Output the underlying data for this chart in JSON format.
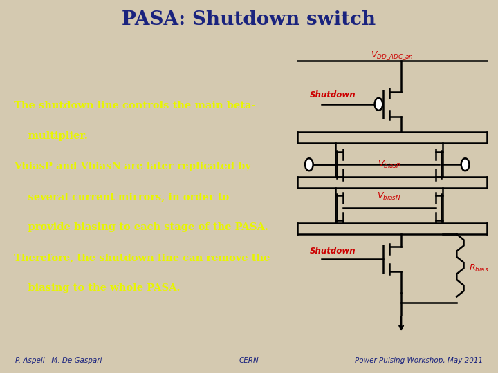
{
  "title": "PASA: Shutdown switch",
  "title_color": "#1a237e",
  "title_fontsize": 20,
  "header_bg": "#d4c9b0",
  "main_bg": "#1a3a9e",
  "footer_bg": "#d4c9b0",
  "footer_color": "#1a237e",
  "text_color": "#e8f500",
  "body_fontsize": 10.5,
  "footer_left": "P. Aspell   M. De Gaspari",
  "footer_center": "CERN",
  "footer_right": "Power Pulsing Workshop, May 2011",
  "body_lines": [
    "The shutdown line controls the main beta-",
    "    multiplier.",
    "VbiasP and VbiasN are later replicated by",
    "    several current mirrors, in order to",
    "    provide biasing to each stage of the PASA.",
    "Therefore, the shutdown line can remove the",
    "    biasing to the whole PASA."
  ],
  "circuit_color": "black",
  "lw": 1.8,
  "label_color": "#cc0000"
}
